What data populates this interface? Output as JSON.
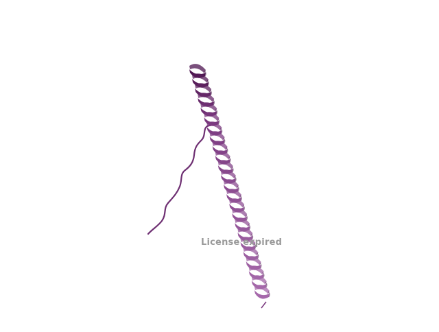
{
  "scene": {
    "watermark_text": "License expired",
    "colors": {
      "helix_dark": "#4e1650",
      "helix_mid": "#7b3a80",
      "helix_light": "#a86cad",
      "coil": "#6e2f72"
    },
    "molecule": "protein-ribbon-helix"
  }
}
